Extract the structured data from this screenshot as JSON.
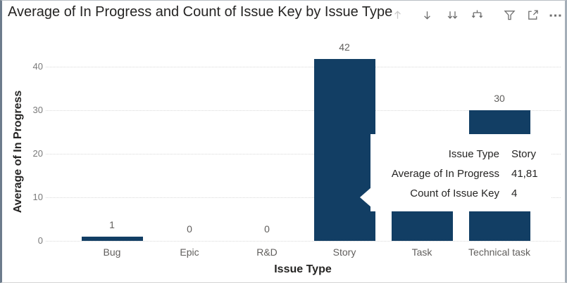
{
  "header": {
    "title": "Average of In Progress and Count of Issue Key by Issue Type",
    "icons": [
      {
        "name": "drill-up-icon",
        "state": "disabled"
      },
      {
        "name": "drill-down-icon",
        "state": "enabled"
      },
      {
        "name": "go-to-next-level-icon",
        "state": "enabled"
      },
      {
        "name": "expand-all-down-icon",
        "state": "enabled"
      },
      {
        "name": "filter-icon",
        "state": "enabled"
      },
      {
        "name": "focus-mode-icon",
        "state": "enabled"
      },
      {
        "name": "more-options-icon",
        "state": "enabled"
      }
    ]
  },
  "chart_data": {
    "type": "bar",
    "title": "Average of In Progress and Count of Issue Key by Issue Type",
    "xlabel": "Issue Type",
    "ylabel": "Average of In Progress",
    "categories": [
      "Bug",
      "Epic",
      "R&D",
      "Story",
      "Task",
      "Technical task"
    ],
    "values": [
      1,
      0,
      0,
      41.81,
      null,
      30
    ],
    "visible_bar_units": [
      1,
      0,
      0,
      41.81,
      7.1,
      30
    ],
    "data_labels": [
      "1",
      "0",
      "0",
      "42",
      null,
      "30"
    ],
    "y_ticks": [
      0,
      10,
      20,
      30,
      40
    ],
    "ylim": [
      0,
      45
    ],
    "grid": "dotted horizontal gridlines",
    "legend": "none"
  },
  "tooltip": {
    "rows": [
      {
        "label": "Issue Type",
        "value": "Story"
      },
      {
        "label": "Average of In Progress",
        "value": "41,81"
      },
      {
        "label": "Count of Issue Key",
        "value": "4"
      }
    ]
  },
  "colors": {
    "bar": "#123e64",
    "title_text": "#252423",
    "axis_title_text": "#252423",
    "tick_label_text": "#7a7a7a",
    "category_label_text": "#605e5c",
    "data_label_text": "#605e5c",
    "icon_gray": "#6e6e6e",
    "icon_disabled": "#c9c9c9",
    "tooltip_background": "#ffffff",
    "gridline": "#d9d9d9"
  }
}
